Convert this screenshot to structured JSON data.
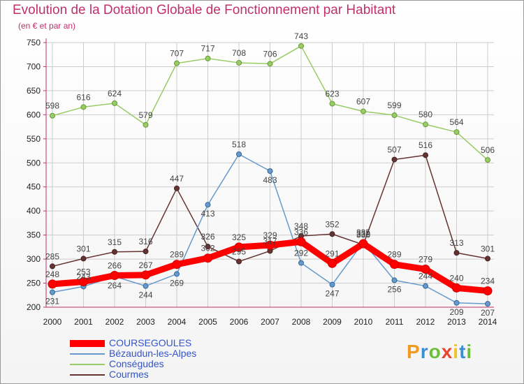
{
  "title": "Evolution de la Dotation Globale de Fonctionnement par Habitant",
  "subtitle": "(en € et par an)",
  "logo": {
    "text": "Proxiti",
    "letters": [
      "P",
      "r",
      "o",
      "x",
      "i",
      "t",
      "i"
    ],
    "colors": [
      "#f29a1f",
      "#3a8fd1",
      "#6cbf3c",
      "#e8452f",
      "#f2c31f",
      "#3a8fd1",
      "#6cbf3c"
    ]
  },
  "chart_data": {
    "type": "line",
    "title": "Evolution de la Dotation Globale de Fonctionnement par Habitant",
    "subtitle": "(en € et par an)",
    "xlabel": "",
    "ylabel": "",
    "x": [
      "2000",
      "2001",
      "2002",
      "2003",
      "2004",
      "2005",
      "2006",
      "2007",
      "2008",
      "2009",
      "2010",
      "2011",
      "2012",
      "2013",
      "2014"
    ],
    "ylim": [
      200,
      750
    ],
    "yticks": [
      200,
      250,
      300,
      350,
      400,
      450,
      500,
      550,
      600,
      650,
      700,
      750
    ],
    "grid": true,
    "legend_position": "bottom-left",
    "series": [
      {
        "name": "COURSEGOULES",
        "color": "#ff0000",
        "values": [
          248,
          253,
          266,
          267,
          289,
          302,
          325,
          329,
          336,
          291,
          332,
          289,
          279,
          240,
          234
        ]
      },
      {
        "name": "Bézaudun-les-Alpes",
        "color": "#6699cc",
        "values": [
          231,
          243,
          264,
          244,
          269,
          413,
          518,
          483,
          292,
          247,
          335,
          256,
          244,
          209,
          207
        ]
      },
      {
        "name": "Conségudes",
        "color": "#99cc66",
        "values": [
          598,
          616,
          624,
          579,
          707,
          717,
          708,
          706,
          743,
          623,
          607,
          599,
          580,
          564,
          506
        ]
      },
      {
        "name": "Courmes",
        "color": "#663333",
        "values": [
          285,
          301,
          315,
          316,
          447,
          326,
          295,
          317,
          348,
          352,
          330,
          507,
          516,
          313,
          301
        ]
      }
    ]
  }
}
